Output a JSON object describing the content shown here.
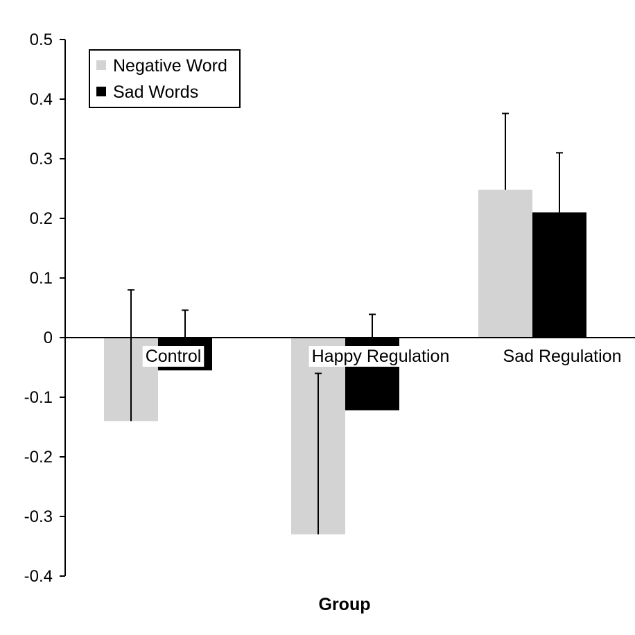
{
  "chart_data": {
    "type": "bar",
    "xlabel": "Group",
    "ylabel": "",
    "ylim": [
      -0.4,
      0.5
    ],
    "yticks": [
      "0.5",
      "0.4",
      "0.3",
      "0.2",
      "0.1",
      "0",
      "-0.1",
      "-0.2",
      "-0.3",
      "-0.4"
    ],
    "categories": [
      "Control",
      "Happy Regulation",
      "Sad Regulation"
    ],
    "series": [
      {
        "name": "Negative Word",
        "color": "#d3d3d3",
        "values": [
          -0.14,
          -0.33,
          0.248
        ],
        "error_upper": [
          0.08,
          -0.06,
          0.376
        ],
        "error_lower": [
          -0.14,
          -0.33,
          0.248
        ]
      },
      {
        "name": "Sad Words",
        "color": "#000000",
        "values": [
          -0.055,
          -0.122,
          0.21
        ],
        "error_upper": [
          0.046,
          0.039,
          0.31
        ],
        "error_lower": [
          0.0,
          0.0,
          0.21
        ]
      }
    ],
    "grid": false,
    "legend_position": "top-left"
  }
}
